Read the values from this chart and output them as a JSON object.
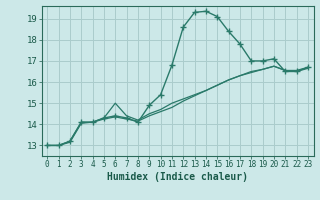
{
  "xlabel": "Humidex (Indice chaleur)",
  "background_color": "#cce8e8",
  "grid_color": "#aacccc",
  "line_color": "#2a7a6a",
  "xlim": [
    -0.5,
    23.5
  ],
  "ylim": [
    12.5,
    19.6
  ],
  "yticks": [
    13,
    14,
    15,
    16,
    17,
    18,
    19
  ],
  "xticks": [
    0,
    1,
    2,
    3,
    4,
    5,
    6,
    7,
    8,
    9,
    10,
    11,
    12,
    13,
    14,
    15,
    16,
    17,
    18,
    19,
    20,
    21,
    22,
    23
  ],
  "series1_x": [
    0,
    1,
    2,
    3,
    4,
    5,
    6,
    7,
    8,
    9,
    10,
    11,
    12,
    13,
    14,
    15,
    16,
    17,
    18,
    19,
    20,
    21,
    22,
    23
  ],
  "series1_y": [
    13.0,
    13.0,
    13.2,
    14.1,
    14.1,
    14.3,
    14.4,
    14.3,
    14.1,
    14.9,
    15.4,
    16.8,
    18.6,
    19.3,
    19.35,
    19.1,
    18.4,
    17.8,
    17.0,
    17.0,
    17.1,
    16.5,
    16.5,
    16.7
  ],
  "series2_x": [
    0,
    1,
    2,
    3,
    4,
    5,
    6,
    7,
    8,
    9,
    10,
    11,
    12,
    13,
    14,
    15,
    16,
    17,
    18,
    19,
    20,
    21,
    22,
    23
  ],
  "series2_y": [
    13.0,
    13.0,
    13.2,
    14.1,
    14.1,
    14.3,
    15.0,
    14.4,
    14.2,
    14.5,
    14.7,
    15.0,
    15.2,
    15.4,
    15.6,
    15.85,
    16.1,
    16.3,
    16.5,
    16.6,
    16.75,
    16.55,
    16.55,
    16.7
  ],
  "series3_x": [
    0,
    1,
    2,
    3,
    4,
    5,
    6,
    7,
    8,
    9,
    10,
    11,
    12,
    13,
    14,
    15,
    16,
    17,
    18,
    19,
    20,
    21,
    22,
    23
  ],
  "series3_y": [
    13.0,
    13.0,
    13.15,
    14.05,
    14.1,
    14.25,
    14.35,
    14.25,
    14.15,
    14.4,
    14.6,
    14.8,
    15.1,
    15.35,
    15.6,
    15.85,
    16.1,
    16.3,
    16.45,
    16.6,
    16.75,
    16.55,
    16.5,
    16.65
  ]
}
